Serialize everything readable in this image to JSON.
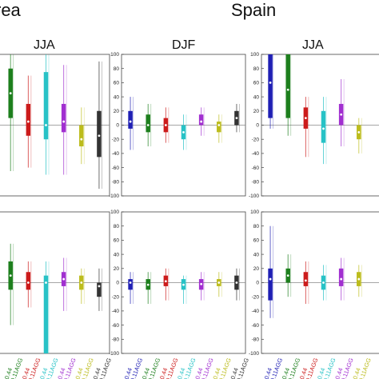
{
  "figure": {
    "region_titles": [
      "rea",
      "Spain"
    ],
    "season_titles": [
      "JJA",
      "DJF",
      "JJA"
    ]
  },
  "colors": {
    "blue": "#1f1fb4",
    "green": "#1d7f1d",
    "red": "#cc1b1b",
    "cyan": "#27c2c6",
    "purple": "#a12fd0",
    "yellow": "#bcbc1c",
    "black": "#333333"
  },
  "chart_data": [
    {
      "type": "box",
      "panel": "top-left-partial",
      "title": "JJA",
      "ylim": [
        -100,
        100
      ],
      "boxes": [
        {
          "group": "green",
          "q1": 10,
          "median": 45,
          "q3": 80,
          "low": -65,
          "high": 100
        },
        {
          "group": "red",
          "q1": -15,
          "median": 5,
          "q3": 30,
          "low": -60,
          "high": 70
        },
        {
          "group": "cyan",
          "q1": -20,
          "median": 0,
          "q3": 75,
          "low": -70,
          "high": 100
        },
        {
          "group": "purple",
          "q1": -10,
          "median": 5,
          "q3": 30,
          "low": -70,
          "high": 85
        },
        {
          "group": "yellow",
          "q1": -30,
          "median": -20,
          "q3": 0,
          "low": -55,
          "high": 25
        },
        {
          "group": "black",
          "q1": -45,
          "median": -15,
          "q3": 20,
          "low": -90,
          "high": 90
        }
      ]
    },
    {
      "type": "box",
      "panel": "top-middle",
      "title": "DJF",
      "ylim": [
        -100,
        100
      ],
      "yticks": [
        -100,
        -80,
        -60,
        -40,
        -20,
        0,
        20,
        40,
        60,
        80,
        100
      ],
      "boxes": [
        {
          "group": "blue",
          "q1": -5,
          "median": 5,
          "q3": 20,
          "low": -35,
          "high": 40
        },
        {
          "group": "green",
          "q1": -10,
          "median": 0,
          "q3": 15,
          "low": -30,
          "high": 30
        },
        {
          "group": "red",
          "q1": -10,
          "median": 0,
          "q3": 10,
          "low": -25,
          "high": 25
        },
        {
          "group": "cyan",
          "q1": -20,
          "median": -10,
          "q3": 0,
          "low": -35,
          "high": 15
        },
        {
          "group": "purple",
          "q1": 0,
          "median": 5,
          "q3": 15,
          "low": -15,
          "high": 25
        },
        {
          "group": "yellow",
          "q1": -10,
          "median": 0,
          "q3": 5,
          "low": -25,
          "high": 15
        },
        {
          "group": "black",
          "q1": 0,
          "median": 10,
          "q3": 20,
          "low": -10,
          "high": 30
        }
      ]
    },
    {
      "type": "box",
      "panel": "top-right-partial",
      "title": "JJA",
      "ylim": [
        -100,
        100
      ],
      "yticks": [
        -100,
        -80,
        -60,
        -40,
        -20,
        0,
        20,
        40,
        60,
        80,
        100
      ],
      "boxes": [
        {
          "group": "blue",
          "q1": 10,
          "median": 60,
          "q3": 100,
          "low": -5,
          "high": 100
        },
        {
          "group": "green",
          "q1": 10,
          "median": 50,
          "q3": 100,
          "low": -15,
          "high": 100
        },
        {
          "group": "red",
          "q1": -5,
          "median": 10,
          "q3": 25,
          "low": -45,
          "high": 40
        },
        {
          "group": "cyan",
          "q1": -25,
          "median": -5,
          "q3": 20,
          "low": -55,
          "high": 40
        },
        {
          "group": "purple",
          "q1": 0,
          "median": 15,
          "q3": 30,
          "low": -30,
          "high": 65
        },
        {
          "group": "yellow",
          "q1": -20,
          "median": -10,
          "q3": 0,
          "low": -40,
          "high": 10
        }
      ]
    },
    {
      "type": "box",
      "panel": "bottom-left-partial",
      "ylim": [
        -100,
        100
      ],
      "boxes": [
        {
          "group": "green",
          "q1": -10,
          "median": 10,
          "q3": 30,
          "low": -60,
          "high": 55
        },
        {
          "group": "red",
          "q1": -10,
          "median": 0,
          "q3": 15,
          "low": -35,
          "high": 30
        },
        {
          "group": "cyan",
          "q1": -100,
          "median": 0,
          "q3": 10,
          "low": -100,
          "high": 30
        },
        {
          "group": "purple",
          "q1": -5,
          "median": 5,
          "q3": 15,
          "low": -40,
          "high": 35
        },
        {
          "group": "yellow",
          "q1": -10,
          "median": 0,
          "q3": 10,
          "low": -30,
          "high": 20
        },
        {
          "group": "black",
          "q1": -20,
          "median": -5,
          "q3": 0,
          "low": -40,
          "high": 20
        }
      ]
    },
    {
      "type": "box",
      "panel": "bottom-middle",
      "ylim": [
        -100,
        100
      ],
      "yticks": [
        -100,
        -80,
        -60,
        -40,
        -20,
        0,
        20,
        40,
        60,
        80,
        100
      ],
      "boxes": [
        {
          "group": "blue",
          "q1": -10,
          "median": 0,
          "q3": 5,
          "low": -30,
          "high": 15
        },
        {
          "group": "green",
          "q1": -10,
          "median": -3,
          "q3": 5,
          "low": -30,
          "high": 15
        },
        {
          "group": "red",
          "q1": -5,
          "median": 2,
          "q3": 10,
          "low": -25,
          "high": 20
        },
        {
          "group": "cyan",
          "q1": -10,
          "median": -3,
          "q3": 5,
          "low": -30,
          "high": 10
        },
        {
          "group": "purple",
          "q1": -10,
          "median": -2,
          "q3": 5,
          "low": -25,
          "high": 15
        },
        {
          "group": "yellow",
          "q1": -5,
          "median": 0,
          "q3": 5,
          "low": -20,
          "high": 15
        },
        {
          "group": "black",
          "q1": -10,
          "median": 0,
          "q3": 10,
          "low": -25,
          "high": 20
        }
      ]
    },
    {
      "type": "box",
      "panel": "bottom-right-partial",
      "ylim": [
        -100,
        100
      ],
      "yticks": [
        -100,
        -80,
        -60,
        -40,
        -20,
        0,
        20,
        40,
        60,
        80,
        100
      ],
      "boxes": [
        {
          "group": "blue",
          "q1": -25,
          "median": 5,
          "q3": 20,
          "low": -50,
          "high": 80
        },
        {
          "group": "green",
          "q1": 0,
          "median": 10,
          "q3": 20,
          "low": -20,
          "high": 40
        },
        {
          "group": "red",
          "q1": -5,
          "median": 3,
          "q3": 15,
          "low": -30,
          "high": 30
        },
        {
          "group": "cyan",
          "q1": -10,
          "median": 0,
          "q3": 10,
          "low": -25,
          "high": 25
        },
        {
          "group": "purple",
          "q1": -5,
          "median": 5,
          "q3": 20,
          "low": -25,
          "high": 35
        },
        {
          "group": "yellow",
          "q1": -5,
          "median": 5,
          "q3": 15,
          "low": -20,
          "high": 25
        }
      ]
    }
  ],
  "x_labels": [
    {
      "group": "blue",
      "line1": "0.44",
      "line2": "0.11AGG"
    },
    {
      "group": "green",
      "line1": "0.44",
      "line2": "0.11AGG"
    },
    {
      "group": "red",
      "line1": "0.44",
      "line2": "0.11AGG"
    },
    {
      "group": "cyan",
      "line1": "0.44",
      "line2": "0.11AGG"
    },
    {
      "group": "purple",
      "line1": "0.44",
      "line2": "0.11AGG"
    },
    {
      "group": "yellow",
      "line1": "0.44",
      "line2": "0.11AGG"
    },
    {
      "group": "black",
      "line1": "0.44",
      "line2": "0.11AGG"
    }
  ]
}
